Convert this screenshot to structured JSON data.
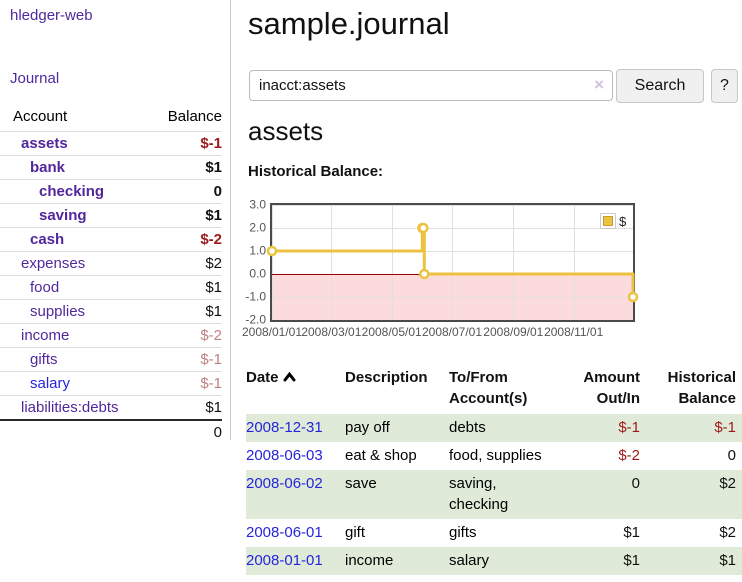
{
  "sidebar": {
    "app_title": "hledger-web",
    "journal_label": "Journal",
    "accounts_table": {
      "headers": {
        "account": "Account",
        "balance": "Balance"
      },
      "rows": [
        {
          "account": "assets",
          "balance": "$-1",
          "depth": 1,
          "bold": true,
          "balance_class": "neg"
        },
        {
          "account": "bank",
          "balance": "$1",
          "depth": 2,
          "bold": true,
          "balance_class": "pos"
        },
        {
          "account": "checking",
          "balance": "0",
          "depth": 3,
          "bold": true,
          "balance_class": "pos"
        },
        {
          "account": "saving",
          "balance": "$1",
          "depth": 3,
          "bold": true,
          "balance_class": "pos"
        },
        {
          "account": "cash",
          "balance": "$-2",
          "depth": 2,
          "bold": true,
          "balance_class": "neg"
        },
        {
          "account": "expenses",
          "balance": "$2",
          "depth": 1,
          "bold": false,
          "balance_class": "pos"
        },
        {
          "account": "food",
          "balance": "$1",
          "depth": 2,
          "bold": false,
          "balance_class": "pos"
        },
        {
          "account": "supplies",
          "balance": "$1",
          "depth": 2,
          "bold": false,
          "balance_class": "pos"
        },
        {
          "account": "income",
          "balance": "$-2",
          "depth": 1,
          "bold": false,
          "balance_class": "dimneg"
        },
        {
          "account": "gifts",
          "balance": "$-1",
          "depth": 2,
          "bold": false,
          "balance_class": "dimneg"
        },
        {
          "account": "salary",
          "balance": "$-1",
          "depth": 2,
          "bold": false,
          "balance_class": "dimneg",
          "link_class": "unvisited"
        },
        {
          "account": "liabilities:debts",
          "balance": "$1",
          "depth": 1,
          "bold": false,
          "balance_class": "pos"
        }
      ],
      "total": "0"
    }
  },
  "main": {
    "title": "sample.journal",
    "search": {
      "value": "inacct:assets",
      "clear_icon": "×",
      "button_label": "Search",
      "help_label": "?"
    },
    "account_heading": "assets",
    "chart_label": "Historical Balance:"
  },
  "chart_data": {
    "type": "line",
    "title": "Historical Balance",
    "series": [
      {
        "name": "$",
        "color": "#edc240",
        "swatch_border": "#c29d2b",
        "steps": true,
        "points": [
          {
            "date": "2008-01-01",
            "value": 1
          },
          {
            "date": "2008-06-01",
            "value": 2
          },
          {
            "date": "2008-06-02",
            "value": 2
          },
          {
            "date": "2008-06-03",
            "value": 0
          },
          {
            "date": "2008-12-31",
            "value": -1
          }
        ]
      }
    ],
    "xlim": [
      "2008-01-01",
      "2008-12-31"
    ],
    "ylim": [
      -2,
      3
    ],
    "x_ticks": [
      "2008/01/01",
      "2008/03/01",
      "2008/05/01",
      "2008/07/01",
      "2008/09/01",
      "2008/11/01"
    ],
    "y_ticks": [
      "3.0",
      "2.0",
      "1.0",
      "0.0",
      "-1.0",
      "-2.0"
    ],
    "y_tick_values": [
      3,
      2,
      1,
      0,
      -1,
      -2
    ],
    "grid": true,
    "grid_color": "#e0e0e0",
    "negative_region_color": "#fbdbdb",
    "zero_line_color": "#9a0000",
    "border_color": "#4a4a4a",
    "tick_color": "#555555",
    "legend": {
      "label": "$",
      "position": "top-right"
    }
  },
  "transactions": {
    "headers": {
      "date": "Date",
      "description": "Description",
      "accounts": "To/From Account(s)",
      "amount": "Amount Out/In",
      "balance": "Historical Balance"
    },
    "rows": [
      {
        "date": "2008-12-31",
        "description": "pay off",
        "accounts": "debts",
        "amount": "$-1",
        "amount_class": "neg",
        "balance": "$-1",
        "balance_class": "neg"
      },
      {
        "date": "2008-06-03",
        "description": "eat & shop",
        "accounts": "food, supplies",
        "amount": "$-2",
        "amount_class": "neg",
        "balance": "0",
        "balance_class": "pos"
      },
      {
        "date": "2008-06-02",
        "description": "save",
        "accounts": "saving, checking",
        "amount": "0",
        "amount_class": "pos",
        "balance": "$2",
        "balance_class": "pos"
      },
      {
        "date": "2008-06-01",
        "description": "gift",
        "accounts": "gifts",
        "amount": "$1",
        "amount_class": "pos",
        "balance": "$2",
        "balance_class": "pos"
      },
      {
        "date": "2008-01-01",
        "description": "income",
        "accounts": "salary",
        "amount": "$1",
        "amount_class": "pos",
        "balance": "$1",
        "balance_class": "pos"
      }
    ]
  }
}
